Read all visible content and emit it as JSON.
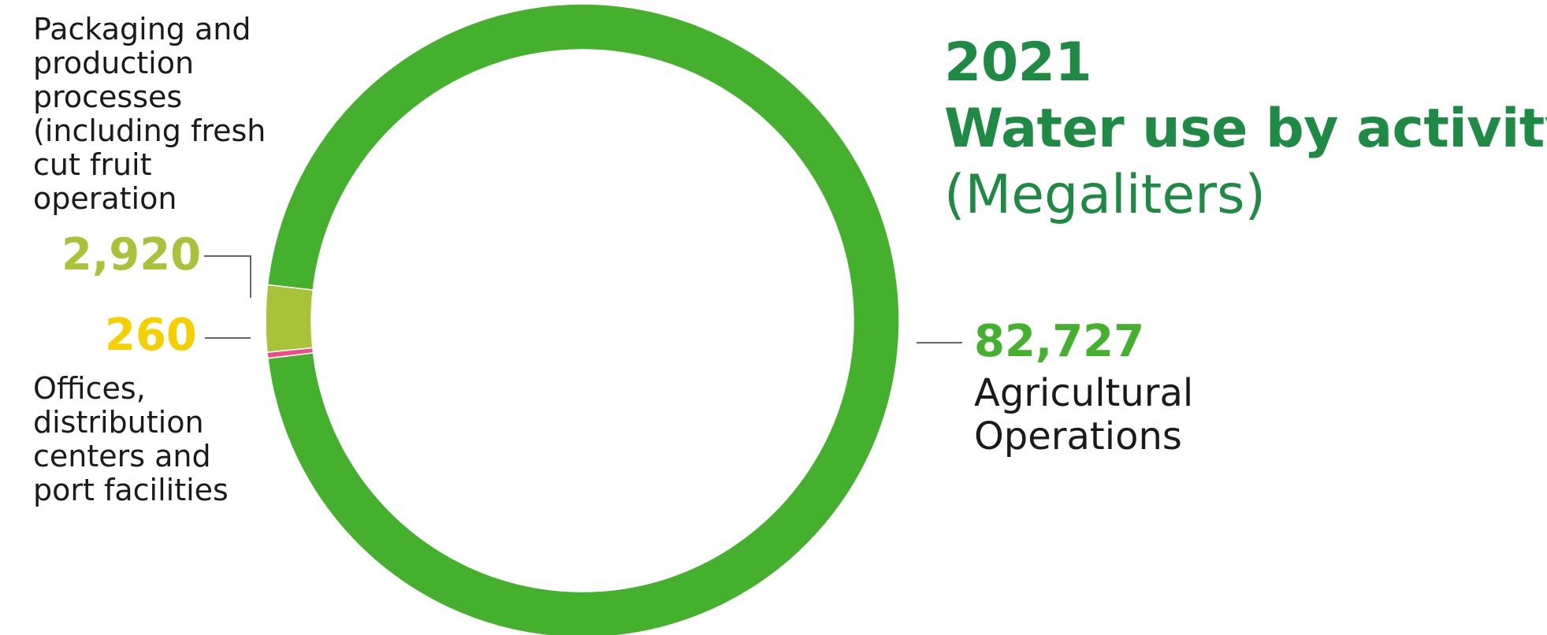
{
  "title": {
    "year": "2021",
    "main": "Water use by activity",
    "unit": "(Megaliters)"
  },
  "chart_data": {
    "type": "pie",
    "style": "donut",
    "slices": [
      {
        "label": "Agricultural\nOperations",
        "value": 82727,
        "value_label": "82,727",
        "color": "#45b02d",
        "label_color": "#45b02d"
      },
      {
        "label": "Offices,\ndistribution\ncenters and\nport facilities",
        "value": 260,
        "value_label": "260",
        "color": "#ef4b8a",
        "label_color": "#f5d000"
      },
      {
        "label": "Packaging and\nproduction\nprocesses\n(including fresh\ncut fruit\noperation",
        "value": 2920,
        "value_label": "2,920",
        "color": "#a8c23a",
        "label_color": "#a8c23a"
      }
    ],
    "legend": "none"
  }
}
